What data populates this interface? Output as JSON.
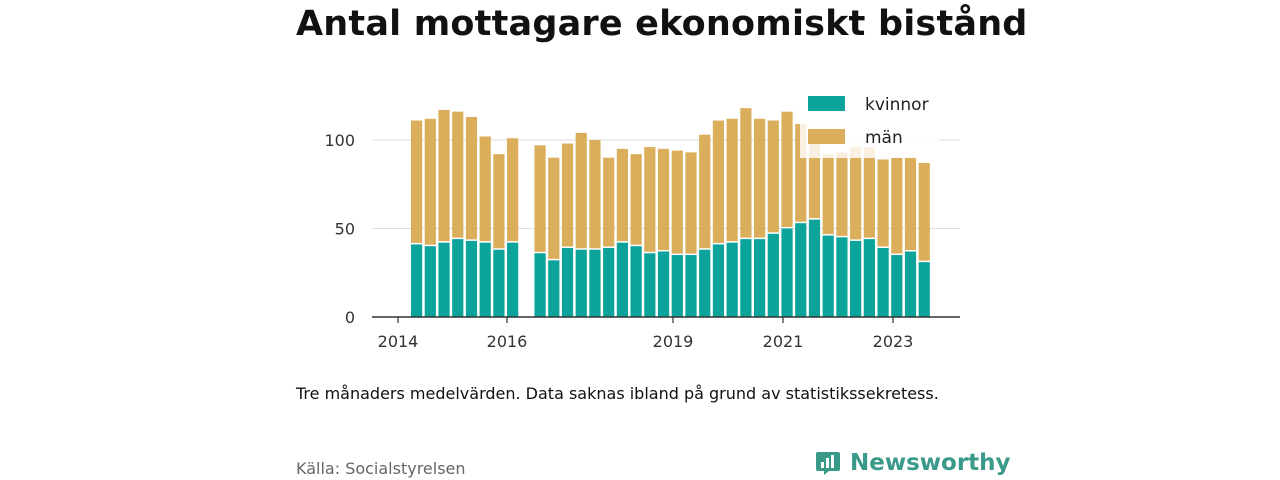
{
  "title": "Antal mottagare ekonomiskt bistånd",
  "note": "Tre månaders medelvärden. Data saknas ibland på grund av statistikssekretess.",
  "source": "Källa: Socialstyrelsen",
  "brand": {
    "name": "Newsworthy",
    "icon": "newsworthy-logo-icon",
    "color": "#3a9a8a"
  },
  "colors": {
    "kvinnor": "#0ba39a",
    "man": "#dbae5b",
    "axis": "#333333",
    "grid": "#dddddd"
  },
  "chart_data": {
    "type": "bar",
    "stacked": true,
    "x_ticks": [
      "2014",
      "2016",
      "2019",
      "2021",
      "2023"
    ],
    "y_ticks": [
      "0",
      "50",
      "100"
    ],
    "ylim": [
      0,
      125
    ],
    "grid": "horizontal",
    "legend_position": "top-right",
    "series": [
      {
        "name": "kvinnor",
        "color": "#0ba39a",
        "values": [
          41,
          40,
          42,
          44,
          43,
          42,
          38,
          42,
          null,
          36,
          32,
          39,
          38,
          38,
          39,
          42,
          40,
          36,
          37,
          35,
          35,
          38,
          41,
          42,
          44,
          44,
          47,
          50,
          53,
          55,
          46,
          45,
          43,
          44,
          39,
          35,
          37,
          31
        ]
      },
      {
        "name": "män",
        "color": "#dbae5b",
        "values": [
          70,
          72,
          75,
          72,
          70,
          60,
          54,
          59,
          null,
          61,
          58,
          59,
          66,
          62,
          51,
          53,
          52,
          60,
          58,
          59,
          58,
          65,
          70,
          70,
          74,
          68,
          64,
          66,
          56,
          46,
          46,
          48,
          53,
          52,
          50,
          55,
          53,
          56
        ]
      }
    ],
    "totals": [
      111,
      112,
      117,
      116,
      113,
      102,
      92,
      101,
      null,
      97,
      90,
      98,
      104,
      100,
      90,
      95,
      92,
      96,
      95,
      94,
      93,
      103,
      111,
      112,
      118,
      112,
      111,
      116,
      109,
      101,
      92,
      93,
      96,
      96,
      89,
      90,
      90,
      87
    ]
  }
}
